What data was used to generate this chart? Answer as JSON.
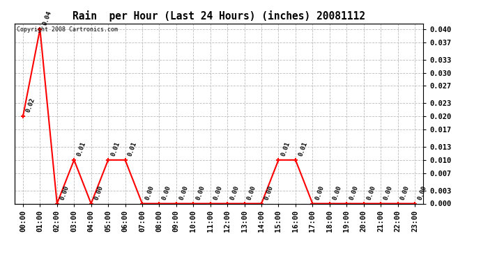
{
  "title": "Rain  per Hour (Last 24 Hours) (inches) 20081112",
  "hours": [
    "00:00",
    "01:00",
    "02:00",
    "03:00",
    "04:00",
    "05:00",
    "06:00",
    "07:00",
    "08:00",
    "09:00",
    "10:00",
    "11:00",
    "12:00",
    "13:00",
    "14:00",
    "15:00",
    "16:00",
    "17:00",
    "18:00",
    "19:00",
    "20:00",
    "21:00",
    "22:00",
    "23:00"
  ],
  "values": [
    0.02,
    0.04,
    0.0,
    0.01,
    0.0,
    0.01,
    0.01,
    0.0,
    0.0,
    0.0,
    0.0,
    0.0,
    0.0,
    0.0,
    0.0,
    0.01,
    0.01,
    0.0,
    0.0,
    0.0,
    0.0,
    0.0,
    0.0,
    0.0
  ],
  "line_color": "#ff0000",
  "marker_color": "#ff0000",
  "bg_color": "#ffffff",
  "grid_color": "#bbbbbb",
  "ylim": [
    0.0,
    0.0413
  ],
  "yticks": [
    0.0,
    0.003,
    0.007,
    0.01,
    0.013,
    0.017,
    0.02,
    0.023,
    0.027,
    0.03,
    0.033,
    0.037,
    0.04
  ],
  "copyright_text": "Copyright 2008 Cartronics.com",
  "figsize": [
    6.9,
    3.75
  ],
  "dpi": 100
}
